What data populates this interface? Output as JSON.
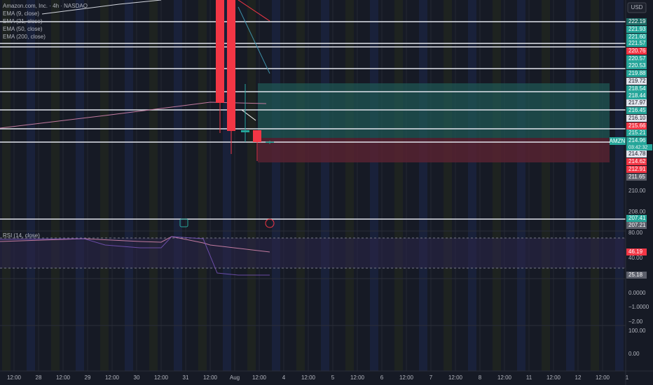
{
  "legend": {
    "symbol": "Amazon.com, Inc. · 4h · NASDAQ",
    "ema9": "EMA (9, close)",
    "ema21": "EMA (21, close)",
    "ema50": "EMA (50, close)",
    "ema200": "EMA (200, close)"
  },
  "rsi_legend": "RSI (14, close)",
  "currency": "USD",
  "ticker_tag": "AMZN",
  "countdown": "03:42:32",
  "price_labels": [
    {
      "text": "222.19",
      "style": "dteal"
    },
    {
      "text": "221.93",
      "style": "teal"
    },
    {
      "text": "221.60",
      "style": "teal"
    },
    {
      "text": "221.57",
      "style": "teal"
    },
    {
      "text": "220.76",
      "style": "red"
    },
    {
      "text": "220.57",
      "style": "teal"
    },
    {
      "text": "220.53",
      "style": "teal"
    },
    {
      "text": "219.88",
      "style": "teal"
    },
    {
      "text": "219.72",
      "style": "white"
    },
    {
      "text": "218.54",
      "style": "teal"
    },
    {
      "text": "218.44",
      "style": "teal"
    },
    {
      "text": "217.97",
      "style": "white"
    },
    {
      "text": "216.45",
      "style": "teal"
    },
    {
      "text": "216.10",
      "style": "white"
    },
    {
      "text": "215.66",
      "style": "red"
    },
    {
      "text": "215.21",
      "style": "teal"
    },
    {
      "text": "214.96",
      "style": "teal"
    },
    {
      "text": "214.78",
      "style": "white"
    },
    {
      "text": "214.62",
      "style": "red"
    },
    {
      "text": "212.91",
      "style": "red"
    },
    {
      "text": "211.65",
      "style": "gray"
    },
    {
      "text": "210.00",
      "style": "plain"
    },
    {
      "text": "208.00",
      "style": "plain"
    },
    {
      "text": "207.41",
      "style": "teal"
    },
    {
      "text": "207.21",
      "style": "gray"
    },
    {
      "text": "80.00",
      "style": "plain"
    },
    {
      "text": "46.19",
      "style": "red"
    },
    {
      "text": "40.00",
      "style": "plain"
    },
    {
      "text": "25.18",
      "style": "gray"
    },
    {
      "text": "0.0000",
      "style": "plain"
    },
    {
      "text": "−1.0000",
      "style": "plain"
    },
    {
      "text": "−2.00",
      "style": "plain"
    },
    {
      "text": "100.00",
      "style": "plain"
    },
    {
      "text": "0.00",
      "style": "plain"
    }
  ],
  "time_labels": [
    "12:00",
    "28",
    "12:00",
    "29",
    "12:00",
    "30",
    "12:00",
    "31",
    "12:00",
    "Aug",
    "12:00",
    "4",
    "12:00",
    "5",
    "12:00",
    "6",
    "12:00",
    "7",
    "12:00",
    "8",
    "12:00",
    "11",
    "12:00",
    "12",
    "12:00",
    "1"
  ],
  "candles": [
    {
      "open": 228.2,
      "high": 228.2,
      "low": 215.53,
      "close": 218.4
    },
    {
      "open": 228.2,
      "high": 228.2,
      "low": 213.53,
      "close": 215.73
    },
    {
      "open": 215.6,
      "high": 220.2,
      "low": 214.67,
      "close": 215.8
    },
    {
      "open": 215.8,
      "high": 215.8,
      "low": 212.87,
      "close": 214.67
    },
    {
      "open": 214.6,
      "high": 214.8,
      "low": 214.5,
      "close": 214.7
    }
  ]
}
